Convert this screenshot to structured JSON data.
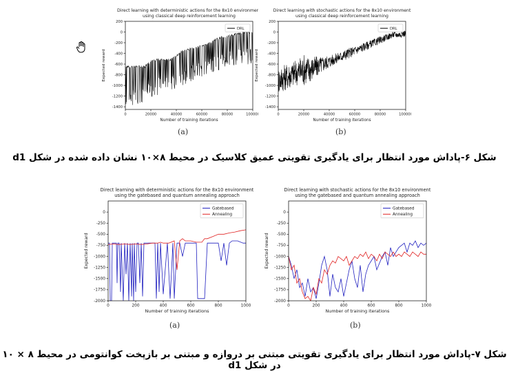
{
  "figure6": {
    "caption": "شکل ۶-پاداش مورد انتظار برای یادگیری تقویتی عمیق کلاسیک در محیط ۸×۱۰ نشان داده شده در شکل d1",
    "label_a": "(a)",
    "label_b": "(b)"
  },
  "figure7": {
    "caption": "شکل ۷-پاداش مورد انتظار برای یادگیری تقویتی مبتنی بر دروازه و مبتنی بر بازپخت کوانتومی در محیط ۸ × ۱۰ در شکل d1",
    "label_a": "(a)",
    "label_b": "(b)"
  },
  "chart_data": [
    {
      "id": "fig6a",
      "type": "line",
      "title": "Direct learning with deterministic actions for the 8x10 environment",
      "subtitle": "using classical deep reinforcement learning",
      "xlabel": "Number of training iterations",
      "ylabel": "Expected reward",
      "xlim": [
        0,
        100000
      ],
      "ylim": [
        -1450,
        200
      ],
      "xticks": [
        "0",
        "20000",
        "40000",
        "60000",
        "80000",
        "100000"
      ],
      "xtick_values": [
        0,
        20000,
        40000,
        60000,
        80000,
        100000
      ],
      "yticks": [
        "200",
        "0",
        "-200",
        "-400",
        "-600",
        "-800",
        "-1000",
        "-1200",
        "-1400"
      ],
      "ytick_values": [
        200,
        0,
        -200,
        -400,
        -600,
        -800,
        -1000,
        -1200,
        -1400
      ],
      "legend": "top-right",
      "series": [
        {
          "name": "DRL",
          "color": "#000000",
          "style": "oscillating",
          "x": [
            0,
            5000,
            10000,
            15000,
            20000,
            25000,
            30000,
            35000,
            40000,
            45000,
            50000,
            55000,
            60000,
            65000,
            70000,
            75000,
            80000,
            85000,
            90000,
            95000,
            100000
          ],
          "upper": [
            -650,
            -650,
            -650,
            -650,
            -550,
            -520,
            -520,
            -520,
            -450,
            -350,
            -320,
            -300,
            -250,
            -220,
            -150,
            -100,
            -80,
            -50,
            -20,
            0,
            -20
          ],
          "lower": [
            -1400,
            -1400,
            -1380,
            -1300,
            -1250,
            -1200,
            -1150,
            -1100,
            -1050,
            -1000,
            -950,
            -900,
            -850,
            -800,
            -750,
            -700,
            -650,
            -650,
            -600,
            -600,
            -650
          ]
        }
      ]
    },
    {
      "id": "fig6b",
      "type": "line",
      "title": "Direct learning with stochastic actions for the 8x10 environment",
      "subtitle": "using classical deep reinforcement learning",
      "xlabel": "Number of training iterations",
      "ylabel": "Expected reward",
      "xlim": [
        0,
        100000
      ],
      "ylim": [
        -1450,
        200
      ],
      "xticks": [
        "0",
        "20000",
        "40000",
        "60000",
        "80000",
        "100000"
      ],
      "xtick_values": [
        0,
        20000,
        40000,
        60000,
        80000,
        100000
      ],
      "yticks": [
        "200",
        "0",
        "-200",
        "-400",
        "-600",
        "-800",
        "-1000",
        "-1200",
        "-1400"
      ],
      "ytick_values": [
        200,
        0,
        -200,
        -400,
        -600,
        -800,
        -1000,
        -1200,
        -1400
      ],
      "legend": "top-right",
      "series": [
        {
          "name": "DRL",
          "color": "#000000",
          "style": "noisy",
          "x": [
            0,
            5000,
            10000,
            15000,
            20000,
            25000,
            30000,
            35000,
            40000,
            45000,
            50000,
            55000,
            60000,
            65000,
            70000,
            75000,
            80000,
            85000,
            90000,
            95000,
            100000
          ],
          "y": [
            -900,
            -850,
            -800,
            -750,
            -700,
            -700,
            -650,
            -600,
            -550,
            -500,
            -450,
            -400,
            -350,
            -300,
            -250,
            -200,
            -150,
            -100,
            -50,
            -50,
            -20
          ],
          "spread": [
            250,
            250,
            250,
            250,
            300,
            250,
            200,
            150,
            120,
            100,
            100,
            100,
            90,
            80,
            80,
            70,
            70,
            60,
            60,
            60,
            60
          ]
        }
      ]
    },
    {
      "id": "fig7a",
      "type": "line",
      "title": "Direct learning with deterministic actions for the 8x10 environment",
      "subtitle": "using the gatebased and quantum annealing approach",
      "xlabel": "Number of training iterations",
      "ylabel": "Expected reward",
      "xlim": [
        0,
        1000
      ],
      "ylim": [
        -2000,
        250
      ],
      "xticks": [
        "0",
        "200",
        "400",
        "600",
        "800",
        "1000"
      ],
      "xtick_values": [
        0,
        200,
        400,
        600,
        800,
        1000
      ],
      "yticks": [
        "0",
        "-250",
        "-500",
        "-750",
        "-1000",
        "-1250",
        "-1500",
        "-1750",
        "-2000"
      ],
      "ytick_values": [
        0,
        -250,
        -500,
        -750,
        -1000,
        -1250,
        -1500,
        -1750,
        -2000
      ],
      "legend": "top-right",
      "series": [
        {
          "name": "Gatebased",
          "color": "#1f1fbf",
          "x": [
            0,
            10,
            15,
            25,
            30,
            60,
            65,
            70,
            80,
            90,
            95,
            110,
            120,
            130,
            140,
            150,
            160,
            170,
            175,
            185,
            190,
            200,
            210,
            220,
            230,
            240,
            250,
            260,
            280,
            300,
            320,
            340,
            350,
            360,
            370,
            380,
            400,
            430,
            450,
            470,
            480,
            500,
            520,
            540,
            560,
            600,
            640,
            650,
            660,
            680,
            700,
            720,
            740,
            760,
            780,
            800,
            820,
            840,
            860,
            880,
            900,
            940,
            980,
            1000
          ],
          "y": [
            -700,
            -700,
            -2000,
            -2000,
            -700,
            -700,
            -1600,
            -700,
            -700,
            -1800,
            -700,
            -2000,
            -700,
            -1400,
            -700,
            -2000,
            -700,
            -1900,
            -700,
            -2000,
            -700,
            -1800,
            -700,
            -700,
            -1600,
            -700,
            -1900,
            -700,
            -700,
            -700,
            -700,
            -700,
            -1950,
            -700,
            -1800,
            -700,
            -1850,
            -700,
            -1950,
            -700,
            -1950,
            -700,
            -700,
            -1000,
            -700,
            -700,
            -700,
            -1950,
            -1950,
            -1950,
            -1950,
            -700,
            -700,
            -700,
            -700,
            -700,
            -1100,
            -700,
            -1200,
            -700,
            -650,
            -650,
            -700,
            -700
          ]
        },
        {
          "name": "Annealing",
          "color": "#e02020",
          "x": [
            0,
            40,
            80,
            120,
            160,
            200,
            240,
            280,
            320,
            360,
            380,
            400,
            440,
            480,
            500,
            520,
            540,
            560,
            600,
            640,
            680,
            700,
            720,
            760,
            800,
            840,
            880,
            920,
            960,
            1000
          ],
          "y": [
            -730,
            -720,
            -730,
            -720,
            -730,
            -720,
            -730,
            -720,
            -700,
            -700,
            -680,
            -700,
            -700,
            -650,
            -1300,
            -650,
            -600,
            -650,
            -650,
            -680,
            -680,
            -600,
            -600,
            -550,
            -500,
            -500,
            -470,
            -450,
            -420,
            -400
          ]
        }
      ]
    },
    {
      "id": "fig7b",
      "type": "line",
      "title": "Direct learning with stochastic actions for the 8x10 environment",
      "subtitle": "using the gatebased and quantum annealing approach",
      "xlabel": "Number of training iterations",
      "ylabel": "Expected reward",
      "xlim": [
        0,
        1000
      ],
      "ylim": [
        -2000,
        250
      ],
      "xticks": [
        "0",
        "200",
        "400",
        "600",
        "800",
        "1000"
      ],
      "xtick_values": [
        0,
        200,
        400,
        600,
        800,
        1000
      ],
      "yticks": [
        "0",
        "-250",
        "-500",
        "-750",
        "-1000",
        "-1250",
        "-1500",
        "-1750",
        "-2000"
      ],
      "ytick_values": [
        0,
        -250,
        -500,
        -750,
        -1000,
        -1250,
        -1500,
        -1750,
        -2000
      ],
      "legend": "top-right",
      "series": [
        {
          "name": "Gatebased",
          "color": "#1f1fbf",
          "x": [
            0,
            20,
            40,
            60,
            80,
            100,
            120,
            140,
            160,
            180,
            200,
            220,
            240,
            260,
            280,
            300,
            320,
            340,
            360,
            380,
            400,
            420,
            440,
            460,
            480,
            500,
            520,
            540,
            560,
            580,
            600,
            620,
            640,
            660,
            680,
            700,
            720,
            740,
            760,
            780,
            800,
            820,
            840,
            860,
            880,
            900,
            920,
            940,
            960,
            980,
            1000
          ],
          "y": [
            -1000,
            -1200,
            -1500,
            -1300,
            -1700,
            -1600,
            -1900,
            -1500,
            -1800,
            -1700,
            -1950,
            -1600,
            -1200,
            -1000,
            -1300,
            -1900,
            -1400,
            -1700,
            -1800,
            -1500,
            -1900,
            -1600,
            -1300,
            -1100,
            -1500,
            -1700,
            -1200,
            -1800,
            -1400,
            -1200,
            -1100,
            -1000,
            -1300,
            -1150,
            -1000,
            -900,
            -1200,
            -800,
            -1000,
            -900,
            -800,
            -750,
            -700,
            -900,
            -700,
            -750,
            -650,
            -800,
            -700,
            -750,
            -700
          ]
        },
        {
          "name": "Annealing",
          "color": "#e02020",
          "x": [
            0,
            20,
            40,
            60,
            80,
            100,
            120,
            140,
            160,
            180,
            200,
            220,
            240,
            260,
            280,
            300,
            320,
            340,
            360,
            380,
            400,
            420,
            440,
            460,
            480,
            500,
            520,
            540,
            560,
            580,
            600,
            620,
            640,
            660,
            680,
            700,
            720,
            740,
            760,
            780,
            800,
            820,
            840,
            860,
            880,
            900,
            920,
            940,
            960,
            980,
            1000
          ],
          "y": [
            -1000,
            -1300,
            -1200,
            -1600,
            -1500,
            -1800,
            -1950,
            -1900,
            -2000,
            -1700,
            -1850,
            -1500,
            -1600,
            -1300,
            -1400,
            -1200,
            -1100,
            -1150,
            -1000,
            -1050,
            -1100,
            -1000,
            -1200,
            -1100,
            -1000,
            -1050,
            -950,
            -1000,
            -900,
            -1050,
            -950,
            -1000,
            -1100,
            -950,
            -1050,
            -900,
            -950,
            -1000,
            -900,
            -1000,
            -950,
            -1000,
            -900,
            -950,
            -1000,
            -900,
            -950,
            -1000,
            -900,
            -950,
            -950
          ]
        }
      ]
    }
  ]
}
